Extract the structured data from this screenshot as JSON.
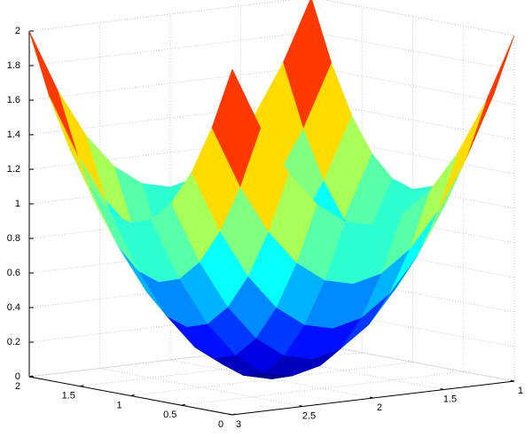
{
  "chart_data": {
    "type": "surface",
    "colormap": "jet",
    "grid": true,
    "x": [
      1,
      1.2,
      1.4,
      1.6,
      1.8,
      2,
      2.2,
      2.4,
      2.6,
      2.8,
      3
    ],
    "y": [
      0,
      0.2,
      0.4,
      0.6,
      0.8,
      1,
      1.2,
      1.4,
      1.6,
      1.8,
      2
    ],
    "z": [
      [
        2,
        1.64,
        1.36,
        1.16,
        1.04,
        1,
        1.04,
        1.16,
        1.36,
        1.64,
        2
      ],
      [
        1.64,
        1.28,
        1,
        0.8,
        0.68,
        0.64,
        0.68,
        0.8,
        1,
        1.28,
        1.64
      ],
      [
        1.36,
        1,
        0.72,
        0.52,
        0.4,
        0.36,
        0.4,
        0.52,
        0.72,
        1,
        1.36
      ],
      [
        1.16,
        0.8,
        0.52,
        0.32,
        0.2,
        0.16,
        0.2,
        0.32,
        0.52,
        0.8,
        1.16
      ],
      [
        1.04,
        0.68,
        0.4,
        0.2,
        0.08,
        0.04,
        0.08,
        0.2,
        0.4,
        0.68,
        1.04
      ],
      [
        1,
        0.64,
        0.36,
        0.16,
        0.04,
        0,
        0.04,
        0.16,
        0.36,
        0.64,
        1
      ],
      [
        1.04,
        0.68,
        0.4,
        0.2,
        0.08,
        0.04,
        0.08,
        0.2,
        0.4,
        0.68,
        1.04
      ],
      [
        1.16,
        0.8,
        0.52,
        0.32,
        0.2,
        0.16,
        0.2,
        0.32,
        0.52,
        0.8,
        1.16
      ],
      [
        1.36,
        1,
        0.72,
        0.52,
        0.4,
        0.36,
        0.4,
        0.52,
        0.72,
        1,
        1.36
      ],
      [
        1.64,
        1.28,
        1,
        0.8,
        0.68,
        0.64,
        0.68,
        0.8,
        1,
        1.28,
        1.64
      ],
      [
        2,
        1.64,
        1.36,
        1.16,
        1.04,
        1,
        1.04,
        1.16,
        1.36,
        1.64,
        2
      ]
    ],
    "xlim": [
      1,
      3
    ],
    "xticks": [
      1,
      1.5,
      2,
      2.5,
      3
    ],
    "ylim": [
      0,
      2
    ],
    "yticks": [
      0,
      0.5,
      1,
      1.5,
      2
    ],
    "zlim": [
      0,
      2
    ],
    "zticks": [
      0,
      0.2,
      0.4,
      0.6,
      0.8,
      1,
      1.2,
      1.4,
      1.6,
      1.8,
      2
    ]
  }
}
